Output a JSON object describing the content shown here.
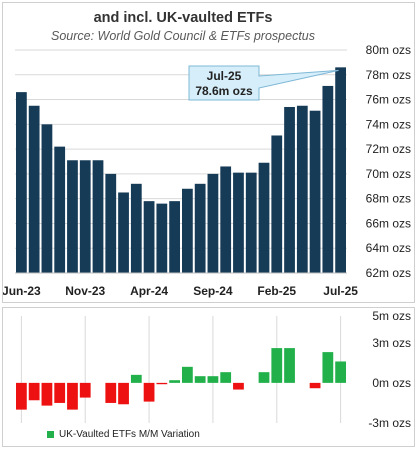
{
  "chart_data": [
    {
      "type": "bar",
      "title": "and incl. UK-vaulted ETFs",
      "subtitle": "Source: World Gold Council & ETFs prospectus",
      "x_tick_labels": [
        "Jun-23",
        "Nov-23",
        "Apr-24",
        "Sep-24",
        "Feb-25",
        "Jul-25"
      ],
      "y_tick_labels": [
        "62m ozs",
        "64m ozs",
        "66m ozs",
        "68m ozs",
        "70m ozs",
        "72m ozs",
        "74m ozs",
        "76m ozs",
        "78m ozs",
        "80m ozs"
      ],
      "ylim": [
        62,
        80
      ],
      "y_unit": "m ozs",
      "categories": [
        "Jun-23",
        "Jul-23",
        "Aug-23",
        "Sep-23",
        "Oct-23",
        "Nov-23",
        "Dec-23",
        "Jan-24",
        "Feb-24",
        "Mar-24",
        "Apr-24",
        "May-24",
        "Jun-24",
        "Jul-24",
        "Aug-24",
        "Sep-24",
        "Oct-24",
        "Nov-24",
        "Dec-24",
        "Jan-25",
        "Feb-25",
        "Mar-25",
        "Apr-25",
        "May-25",
        "Jun-25",
        "Jul-25"
      ],
      "values": [
        76.6,
        75.5,
        74.0,
        72.2,
        71.1,
        71.1,
        71.1,
        70.0,
        68.5,
        69.2,
        67.8,
        67.6,
        67.8,
        68.8,
        69.2,
        70.0,
        70.6,
        70.1,
        70.1,
        70.9,
        73.1,
        75.4,
        75.5,
        75.1,
        77.1,
        78.6
      ],
      "color": "#163b57",
      "annotation": {
        "line1": "Jul-25",
        "line2": "78.6m ozs"
      }
    },
    {
      "type": "bar",
      "legend": "UK-Vaulted ETFs M/M Variation",
      "y_tick_labels": [
        "-3m ozs",
        "0m ozs",
        "3m ozs",
        "5m ozs"
      ],
      "ylim": [
        -3,
        5
      ],
      "categories": [
        "Jun-23",
        "Jul-23",
        "Aug-23",
        "Sep-23",
        "Oct-23",
        "Nov-23",
        "Dec-23",
        "Jan-24",
        "Feb-24",
        "Mar-24",
        "Apr-24",
        "May-24",
        "Jun-24",
        "Jul-24",
        "Aug-24",
        "Sep-24",
        "Oct-24",
        "Nov-24",
        "Dec-24",
        "Jan-25",
        "Feb-25",
        "Mar-25",
        "Apr-25",
        "May-25",
        "Jun-25",
        "Jul-25"
      ],
      "values": [
        -2.0,
        -1.3,
        -1.7,
        -1.5,
        -2.0,
        -1.1,
        0,
        -1.5,
        -1.6,
        0.6,
        -1.4,
        -0.1,
        0.2,
        1.2,
        0.5,
        0.5,
        0.8,
        -0.5,
        0,
        0.8,
        2.6,
        2.6,
        0,
        -0.4,
        2.3,
        1.6
      ],
      "positive_color": "#22b04b",
      "negative_color": "#ee1111"
    }
  ]
}
